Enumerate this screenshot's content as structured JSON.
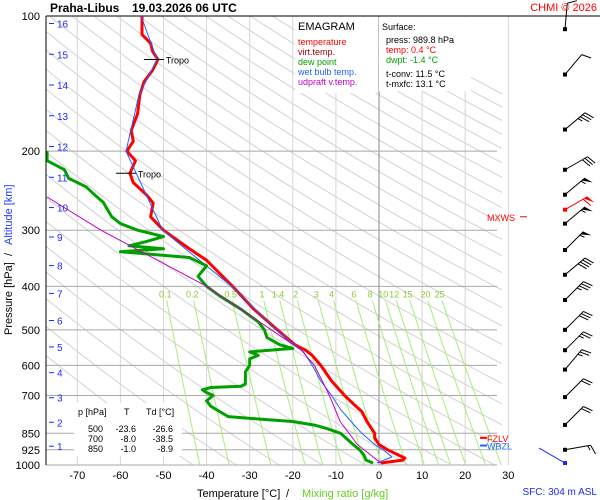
{
  "header": {
    "station": "Praha-Libus",
    "datetime": "19.03.2026 06 UTC",
    "copyright": "CHMI © 2026"
  },
  "legend": {
    "title": "EMAGRAM",
    "items": [
      {
        "label": "temperature",
        "color": "#ff0000"
      },
      {
        "label": "virt.temp.",
        "color": "#a00000"
      },
      {
        "label": "dew point",
        "color": "#00a000"
      },
      {
        "label": "wet bulb temp.",
        "color": "#1e64ff"
      },
      {
        "label": "udpraft v.temp.",
        "color": "#c000c0"
      }
    ]
  },
  "surface": {
    "title": "Surface:",
    "press": "press: 989.8 hPa",
    "temp": "temp: 0.4 °C",
    "dwpt": "dwpt: -1.4 °C",
    "tconv": "t-conv: 11.5 °C",
    "tmxfc": "t-mxfc: 13.1 °C"
  },
  "table": {
    "headers": [
      "p [hPa]",
      "T",
      "Td [°C]"
    ],
    "rows": [
      [
        "500",
        "-23.6",
        "-26.6"
      ],
      [
        "700",
        "-8.0",
        "-38.5"
      ],
      [
        "850",
        "-1.0",
        "-8.9"
      ]
    ]
  },
  "footer": {
    "sfc": "SFC: 304 m ASL"
  },
  "chart_data": {
    "type": "line",
    "title": "EMAGRAM",
    "xlabel": "Temperature [°C]",
    "xlabel_sep": "/",
    "xlabel2": "Mixing ratio [g/kg]",
    "ylabel": "Pressure [hPa]",
    "ylabel_sep": "/",
    "ylabel2": "Altitude [km]",
    "xlim": [
      -77,
      30
    ],
    "ylim": [
      1000,
      100
    ],
    "x_ticks": [
      -70,
      -60,
      -50,
      -40,
      -30,
      -20,
      -10,
      0,
      10,
      20,
      30
    ],
    "p_ticks": [
      100,
      200,
      300,
      400,
      500,
      600,
      700,
      850,
      925,
      1000
    ],
    "alt_ticks_km": [
      1,
      2,
      3,
      4,
      5,
      6,
      7,
      8,
      9,
      10,
      11,
      12,
      13,
      14,
      15,
      16
    ],
    "mixing_ratio_labels": [
      "0.1",
      "0.2",
      "0.5",
      "1",
      "1.4",
      "2",
      "3",
      "4",
      "6",
      "8",
      "10",
      "12",
      "15",
      "20",
      "25"
    ],
    "mixing_ratio_values": [
      0.1,
      0.2,
      0.5,
      1,
      1.4,
      2,
      3,
      4,
      6,
      8,
      10,
      12,
      15,
      20,
      25
    ],
    "dry_adiabats_theta_K": [
      230,
      240,
      250,
      260,
      270,
      280,
      290,
      300,
      310,
      320,
      330,
      340,
      350,
      360,
      370,
      380,
      390,
      400,
      410,
      420,
      430,
      440,
      450,
      460,
      470,
      480,
      490,
      500,
      510,
      520
    ],
    "series": [
      {
        "name": "temperature",
        "color": "#ff0000",
        "points": [
          [
            989.8,
            0.4
          ],
          [
            975,
            5.5
          ],
          [
            965,
            6.0
          ],
          [
            950,
            4.5
          ],
          [
            925,
            2
          ],
          [
            900,
            0
          ],
          [
            870,
            -1
          ],
          [
            850,
            -1.0
          ],
          [
            800,
            -2.8
          ],
          [
            760,
            -4
          ],
          [
            730,
            -6
          ],
          [
            700,
            -8
          ],
          [
            650,
            -11
          ],
          [
            600,
            -13.5
          ],
          [
            570,
            -15.5
          ],
          [
            555,
            -17
          ],
          [
            540,
            -19.5
          ],
          [
            500,
            -23.6
          ],
          [
            450,
            -29
          ],
          [
            400,
            -34
          ],
          [
            350,
            -40
          ],
          [
            330,
            -44
          ],
          [
            300,
            -50
          ],
          [
            280,
            -53
          ],
          [
            261,
            -52.4
          ],
          [
            250,
            -54
          ],
          [
            235,
            -57
          ],
          [
            224,
            -57.8
          ],
          [
            210,
            -56.5
          ],
          [
            200,
            -58.5
          ],
          [
            190,
            -57
          ],
          [
            180,
            -57.5
          ],
          [
            165,
            -56
          ],
          [
            150,
            -55.5
          ],
          [
            140,
            -54.5
          ],
          [
            132,
            -52.5
          ],
          [
            125,
            -51.3
          ],
          [
            120,
            -52.5
          ],
          [
            115,
            -53
          ],
          [
            110,
            -55
          ],
          [
            105,
            -55
          ],
          [
            100,
            -55
          ]
        ]
      },
      {
        "name": "wet bulb temp.",
        "color": "#1e64ff",
        "points": [
          [
            989.8,
            -0.5
          ],
          [
            960,
            3
          ],
          [
            925,
            1
          ],
          [
            900,
            -1
          ],
          [
            850,
            -4
          ],
          [
            800,
            -6.5
          ],
          [
            750,
            -9
          ],
          [
            700,
            -11
          ],
          [
            650,
            -13.5
          ],
          [
            600,
            -15.5
          ],
          [
            560,
            -17.5
          ],
          [
            540,
            -19.6
          ],
          [
            500,
            -23.8
          ],
          [
            400,
            -34.2
          ],
          [
            300,
            -50.2
          ],
          [
            200,
            -58.7
          ],
          [
            150,
            -55.7
          ],
          [
            125,
            -51.5
          ],
          [
            100,
            -55.2
          ]
        ]
      },
      {
        "name": "dew point",
        "color": "#00a000",
        "points": [
          [
            989.8,
            -1.4
          ],
          [
            975,
            -3
          ],
          [
            950,
            -3.5
          ],
          [
            925,
            -4.5
          ],
          [
            900,
            -6
          ],
          [
            850,
            -8.9
          ],
          [
            830,
            -12
          ],
          [
            815,
            -15
          ],
          [
            800,
            -20
          ],
          [
            790,
            -28
          ],
          [
            780,
            -35
          ],
          [
            760,
            -37
          ],
          [
            740,
            -39
          ],
          [
            720,
            -40
          ],
          [
            700,
            -38.5
          ],
          [
            690,
            -40
          ],
          [
            680,
            -41
          ],
          [
            672,
            -39
          ],
          [
            668,
            -32
          ],
          [
            660,
            -31
          ],
          [
            640,
            -31
          ],
          [
            620,
            -31
          ],
          [
            600,
            -30
          ],
          [
            580,
            -30
          ],
          [
            570,
            -28
          ],
          [
            560,
            -30
          ],
          [
            550,
            -20
          ],
          [
            540,
            -23
          ],
          [
            520,
            -26
          ],
          [
            500,
            -26.6
          ],
          [
            480,
            -28
          ],
          [
            450,
            -32
          ],
          [
            420,
            -37
          ],
          [
            400,
            -40
          ],
          [
            380,
            -42
          ],
          [
            360,
            -40
          ],
          [
            345,
            -44
          ],
          [
            335,
            -60
          ],
          [
            330,
            -50
          ],
          [
            325,
            -58
          ],
          [
            318,
            -54
          ],
          [
            310,
            -50
          ],
          [
            300,
            -56
          ],
          [
            290,
            -60
          ],
          [
            280,
            -62
          ],
          [
            270,
            -63
          ],
          [
            260,
            -64
          ],
          [
            250,
            -66
          ],
          [
            240,
            -68
          ],
          [
            230,
            -72
          ],
          [
            220,
            -73
          ],
          [
            210,
            -77
          ],
          [
            200,
            -77
          ]
        ]
      },
      {
        "name": "udpraft v.temp.",
        "color": "#c000c0",
        "points": [
          [
            989.8,
            0.4
          ],
          [
            900,
            -5
          ],
          [
            800,
            -9
          ],
          [
            700,
            -11.5
          ],
          [
            600,
            -15
          ],
          [
            555,
            -18
          ],
          [
            500,
            -25
          ],
          [
            400,
            -40
          ],
          [
            300,
            -64.5
          ],
          [
            253,
            -77
          ]
        ]
      }
    ],
    "annotations": [
      {
        "label": "Tropo",
        "p": 224,
        "T": -57.8
      },
      {
        "label": "Tropo",
        "p": 125,
        "T": -51.3
      },
      {
        "label": "MXWS",
        "p": 280,
        "color": "#ff0000"
      },
      {
        "label": "FZLV",
        "p": 870,
        "color": "#ff0000"
      },
      {
        "label": "WBZL",
        "p": 905,
        "color": "#1e64ff"
      }
    ],
    "wind_barbs": [
      {
        "p": 107,
        "dir": 5,
        "kt": 10
      },
      {
        "p": 135,
        "dir": 40,
        "kt": 10
      },
      {
        "p": 179,
        "dir": 50,
        "kt": 35
      },
      {
        "p": 220,
        "dir": 60,
        "kt": 30
      },
      {
        "p": 250,
        "dir": 50,
        "kt": 55
      },
      {
        "p": 270,
        "dir": 60,
        "kt": 60,
        "max": true
      },
      {
        "p": 290,
        "dir": 50,
        "kt": 55
      },
      {
        "p": 332,
        "dir": 45,
        "kt": 55
      },
      {
        "p": 377,
        "dir": 50,
        "kt": 40
      },
      {
        "p": 429,
        "dir": 45,
        "kt": 35
      },
      {
        "p": 500,
        "dir": 45,
        "kt": 30
      },
      {
        "p": 555,
        "dir": 45,
        "kt": 25
      },
      {
        "p": 613,
        "dir": 40,
        "kt": 25
      },
      {
        "p": 706,
        "dir": 45,
        "kt": 20
      },
      {
        "p": 814,
        "dir": 45,
        "kt": 20
      },
      {
        "p": 925,
        "dir": 80,
        "kt": 15
      },
      {
        "p": 990,
        "dir": 300,
        "kt": 2,
        "surface": true
      }
    ]
  }
}
